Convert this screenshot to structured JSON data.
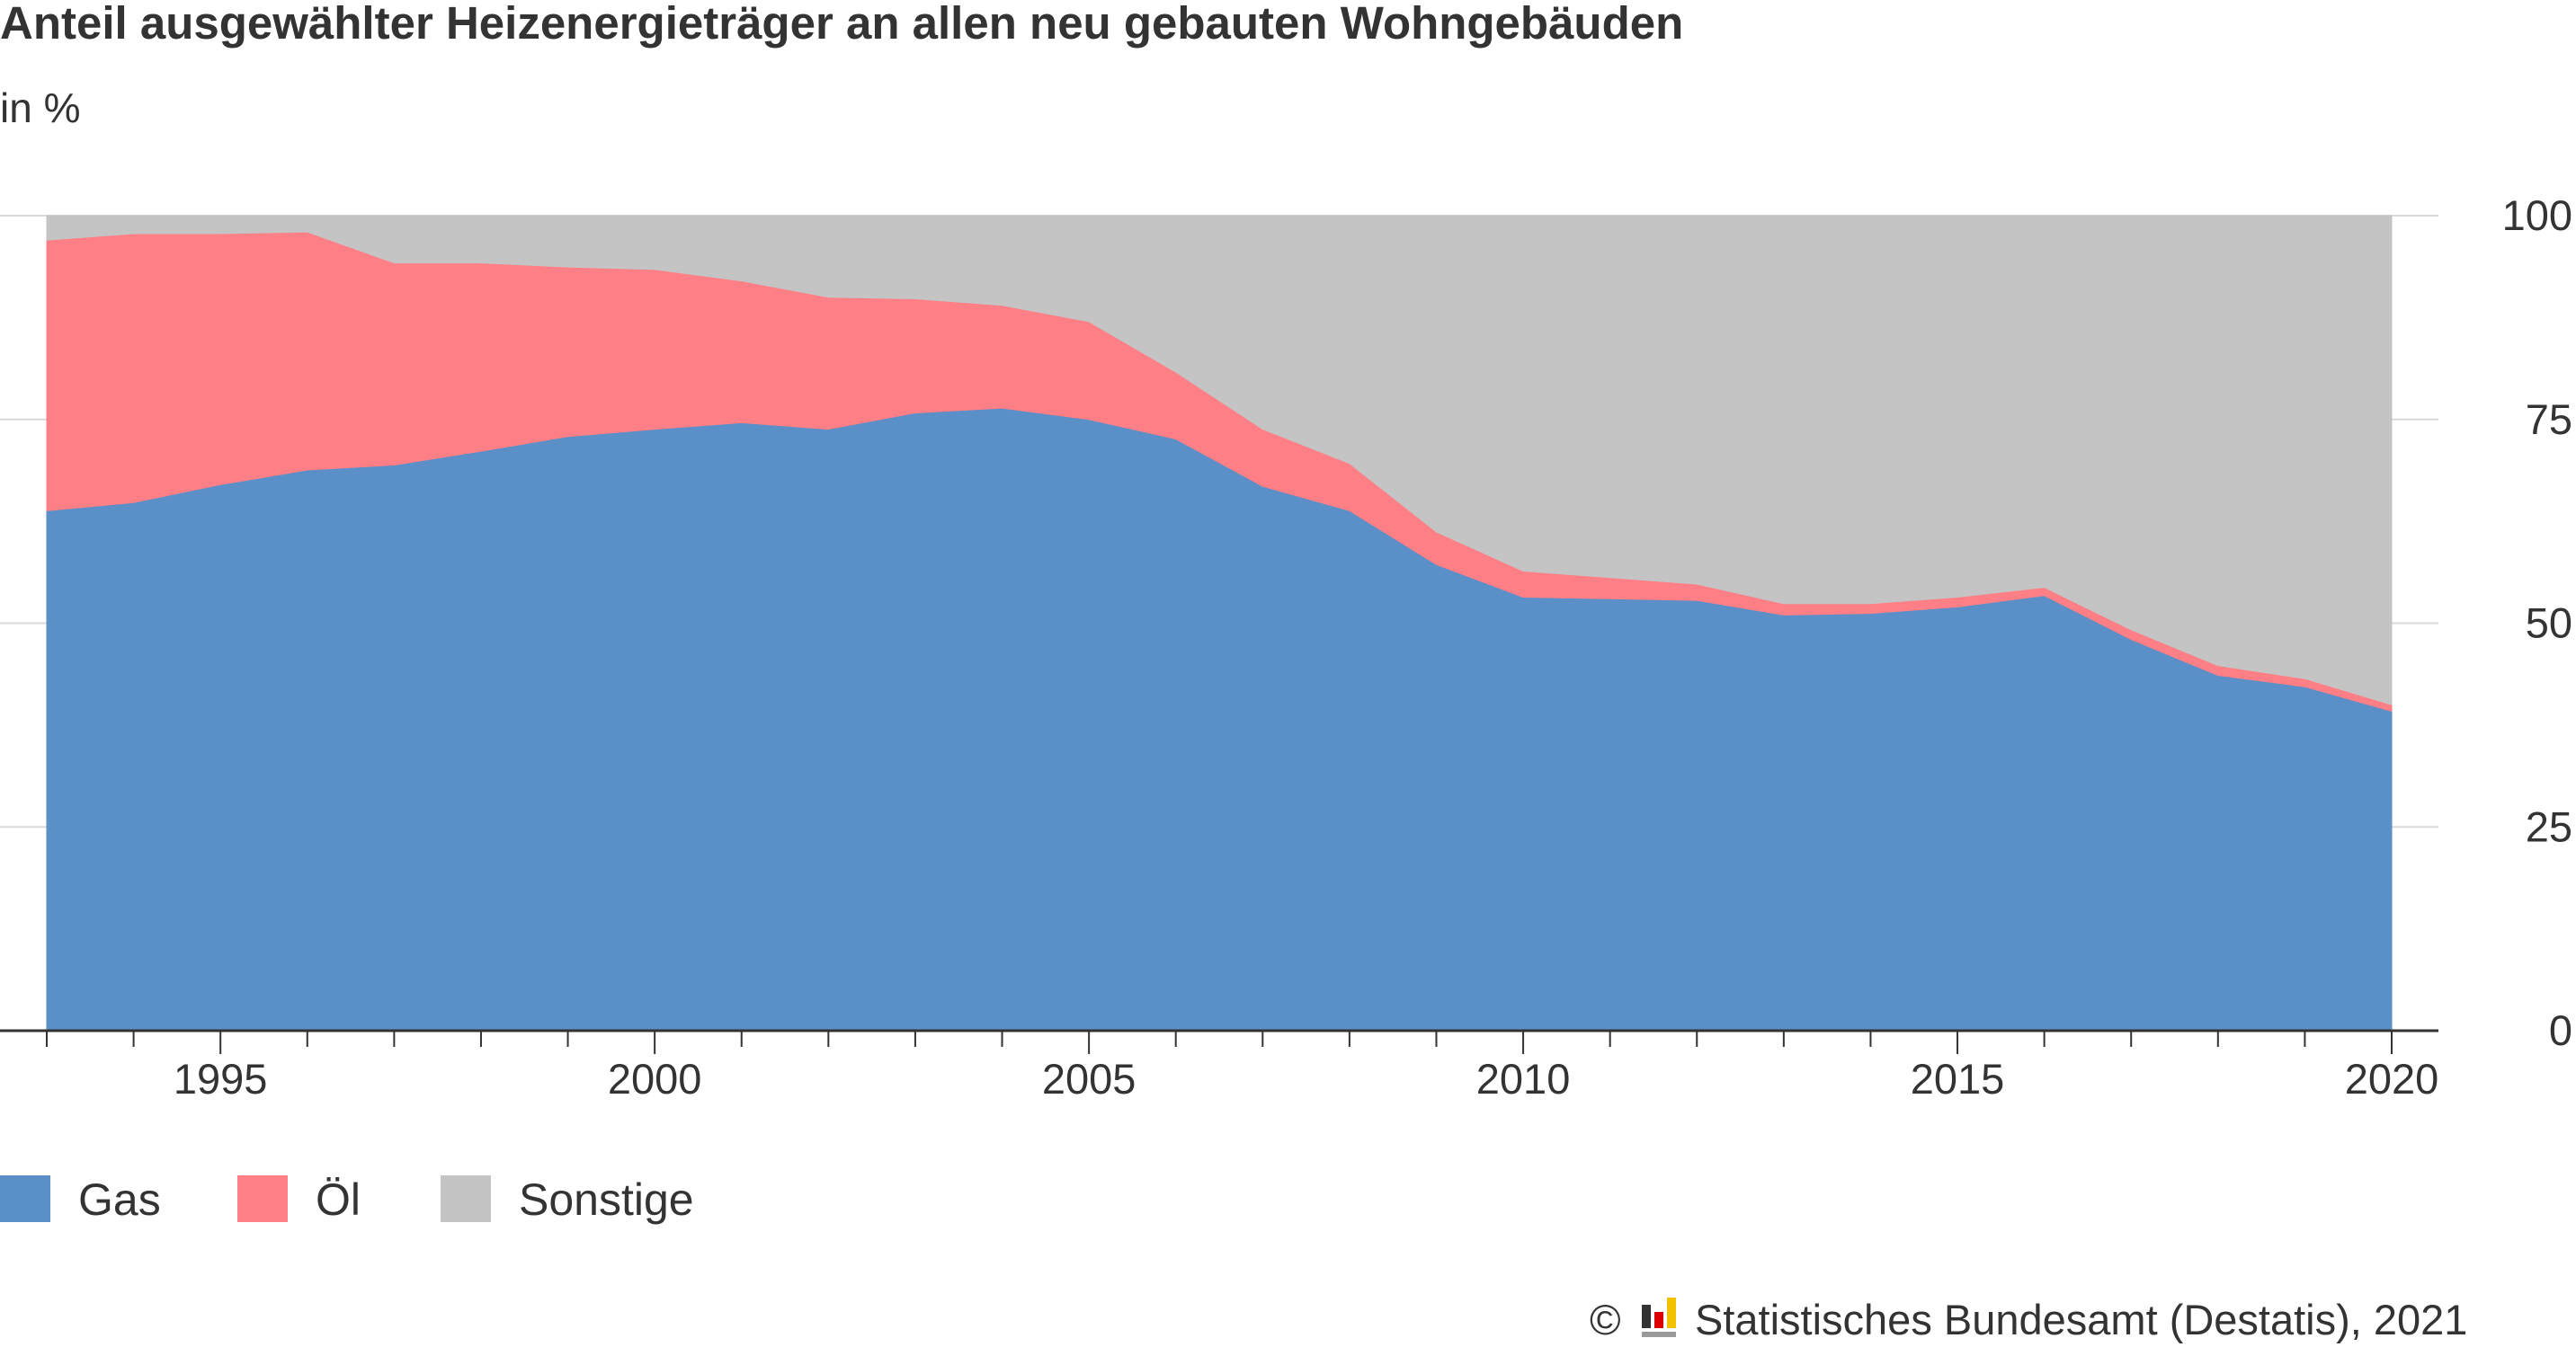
{
  "title": "Anteil ausgewählter Heizenergieträger an allen neu gebauten Wohngebäuden",
  "subtitle": "in %",
  "source": {
    "copyright_symbol": "©",
    "text": "Statistisches Bundesamt (Destatis), 2021",
    "logo_icon": "destatis-logo-icon"
  },
  "colors": {
    "gas": "#5b8fc7",
    "oel": "#ff7f86",
    "sonstige": "#c4c4c4",
    "grid": "#d9d9d9",
    "axis": "#333333"
  },
  "chart_data": {
    "type": "area",
    "stacked": true,
    "x": [
      1993,
      1994,
      1995,
      1996,
      1997,
      1998,
      1999,
      2000,
      2001,
      2002,
      2003,
      2004,
      2005,
      2006,
      2007,
      2008,
      2009,
      2010,
      2011,
      2012,
      2013,
      2014,
      2015,
      2016,
      2017,
      2018,
      2019,
      2020
    ],
    "series": [
      {
        "name": "Gas",
        "color": "#5b8fc7",
        "values": [
          63.8,
          64.8,
          67.0,
          68.8,
          69.4,
          71.1,
          72.9,
          73.8,
          74.6,
          73.8,
          75.8,
          76.4,
          75.0,
          72.6,
          66.8,
          63.8,
          57.2,
          53.2,
          53.0,
          52.8,
          51.0,
          51.2,
          52.0,
          53.4,
          48.0,
          43.6,
          42.2,
          39.2
        ]
      },
      {
        "name": "Öl",
        "color": "#ff7f86",
        "values": [
          33.2,
          33.0,
          30.8,
          29.2,
          24.8,
          23.1,
          20.8,
          19.6,
          17.4,
          16.2,
          14.0,
          12.6,
          12.0,
          8.2,
          7.0,
          5.8,
          4.0,
          3.2,
          2.6,
          2.0,
          1.4,
          1.2,
          1.2,
          1.0,
          1.2,
          1.2,
          1.0,
          0.8
        ]
      },
      {
        "name": "Sonstige",
        "color": "#c4c4c4",
        "values": [
          3.0,
          2.2,
          2.2,
          2.0,
          5.8,
          5.8,
          6.3,
          6.6,
          8.0,
          10.0,
          10.2,
          11.0,
          13.0,
          19.2,
          26.2,
          30.4,
          38.8,
          43.6,
          44.4,
          45.2,
          47.6,
          47.6,
          46.8,
          45.6,
          50.8,
          55.2,
          56.8,
          60.0
        ]
      }
    ],
    "x_tick_labels": [
      "1995",
      "2000",
      "2005",
      "2010",
      "2015",
      "2020"
    ],
    "x_tick_values": [
      1995,
      2000,
      2005,
      2010,
      2015,
      2020
    ],
    "y_tick_labels": [
      "0",
      "25",
      "50",
      "75",
      "100"
    ],
    "y_tick_values": [
      0,
      25,
      50,
      75,
      100
    ],
    "xlim": [
      1993,
      2020
    ],
    "ylim": [
      0,
      100
    ],
    "xlabel": "",
    "ylabel": "",
    "grid": true,
    "y_axis_position": "right",
    "legend_position": "bottom-left"
  }
}
